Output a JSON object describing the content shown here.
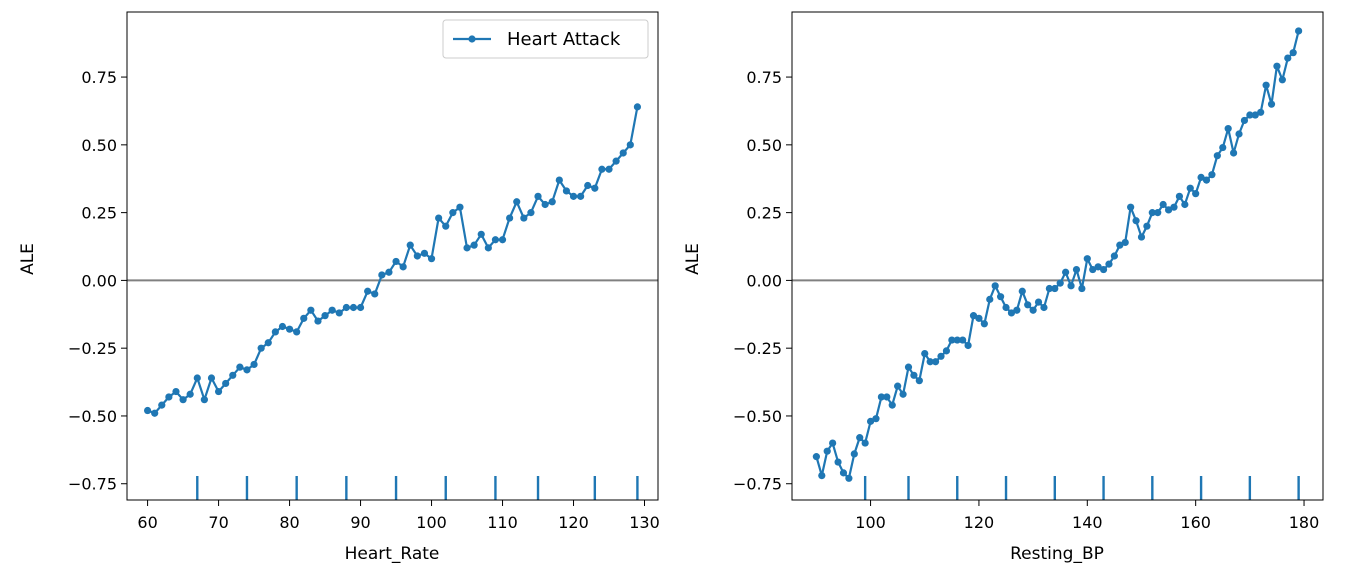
{
  "chart_data": [
    {
      "type": "line",
      "xlabel": "Heart_Rate",
      "ylabel": "ALE",
      "xlim": [
        57.1,
        131.9
      ],
      "ylim": [
        -0.81,
        0.99
      ],
      "xticks": [
        60,
        70,
        80,
        90,
        100,
        110,
        120,
        130
      ],
      "yticks": [
        -0.75,
        -0.5,
        -0.25,
        0.0,
        0.25,
        0.5,
        0.75
      ],
      "ytick_labels": [
        "−0.75",
        "−0.50",
        "−0.25",
        "0.00",
        "0.25",
        "0.50",
        "0.75"
      ],
      "zero_line": 0.0,
      "rug": [
        67,
        74,
        81,
        88,
        95,
        102,
        109,
        115,
        123,
        129
      ],
      "legend": {
        "position": "top-right",
        "entries": [
          "Heart Attack"
        ]
      },
      "series": [
        {
          "name": "Heart Attack",
          "color": "#1f77b4",
          "x": [
            60,
            61,
            62,
            63,
            64,
            65,
            66,
            67,
            68,
            69,
            70,
            71,
            72,
            73,
            74,
            75,
            76,
            77,
            78,
            79,
            80,
            81,
            82,
            83,
            84,
            85,
            86,
            87,
            88,
            89,
            90,
            91,
            92,
            93,
            94,
            95,
            96,
            97,
            98,
            99,
            100,
            101,
            102,
            103,
            104,
            105,
            106,
            107,
            108,
            109,
            110,
            111,
            112,
            113,
            114,
            115,
            116,
            117,
            118,
            119,
            120,
            121,
            122,
            123,
            124,
            125,
            126,
            127,
            128,
            129
          ],
          "y": [
            -0.48,
            -0.49,
            -0.46,
            -0.43,
            -0.41,
            -0.44,
            -0.42,
            -0.36,
            -0.44,
            -0.36,
            -0.41,
            -0.38,
            -0.35,
            -0.32,
            -0.33,
            -0.31,
            -0.25,
            -0.23,
            -0.19,
            -0.17,
            -0.18,
            -0.19,
            -0.14,
            -0.11,
            -0.15,
            -0.13,
            -0.11,
            -0.12,
            -0.1,
            -0.1,
            -0.1,
            -0.04,
            -0.05,
            0.02,
            0.03,
            0.07,
            0.05,
            0.13,
            0.09,
            0.1,
            0.08,
            0.23,
            0.2,
            0.25,
            0.27,
            0.12,
            0.13,
            0.17,
            0.12,
            0.15,
            0.15,
            0.23,
            0.29,
            0.23,
            0.25,
            0.31,
            0.28,
            0.29,
            0.37,
            0.33,
            0.31,
            0.31,
            0.35,
            0.34,
            0.41,
            0.41,
            0.44,
            0.47,
            0.5,
            0.64
          ]
        }
      ]
    },
    {
      "type": "line",
      "xlabel": "Resting_BP",
      "ylabel": "ALE",
      "xlim": [
        85.5,
        183.5
      ],
      "ylim": [
        -0.81,
        0.99
      ],
      "xticks": [
        100,
        120,
        140,
        160,
        180
      ],
      "yticks": [
        -0.75,
        -0.5,
        -0.25,
        0.0,
        0.25,
        0.5,
        0.75
      ],
      "ytick_labels": [
        "−0.75",
        "−0.50",
        "−0.25",
        "0.00",
        "0.25",
        "0.50",
        "0.75"
      ],
      "zero_line": 0.0,
      "rug": [
        99,
        107,
        116,
        125,
        134,
        143,
        152,
        161,
        170,
        179
      ],
      "series": [
        {
          "color": "#1f77b4",
          "x": [
            90,
            91,
            92,
            93,
            94,
            95,
            96,
            97,
            98,
            99,
            100,
            101,
            102,
            103,
            104,
            105,
            106,
            107,
            108,
            109,
            110,
            111,
            112,
            113,
            114,
            115,
            116,
            117,
            118,
            119,
            120,
            121,
            122,
            123,
            124,
            125,
            126,
            127,
            128,
            129,
            130,
            131,
            132,
            133,
            134,
            135,
            136,
            137,
            138,
            139,
            140,
            141,
            142,
            143,
            144,
            145,
            146,
            147,
            148,
            149,
            150,
            151,
            152,
            153,
            154,
            155,
            156,
            157,
            158,
            159,
            160,
            161,
            162,
            163,
            164,
            165,
            166,
            167,
            168,
            169,
            170,
            171,
            172,
            173,
            174,
            175,
            176,
            177,
            178,
            179
          ],
          "y": [
            -0.65,
            -0.72,
            -0.63,
            -0.6,
            -0.67,
            -0.71,
            -0.73,
            -0.64,
            -0.58,
            -0.6,
            -0.52,
            -0.51,
            -0.43,
            -0.43,
            -0.46,
            -0.39,
            -0.42,
            -0.32,
            -0.35,
            -0.37,
            -0.27,
            -0.3,
            -0.3,
            -0.28,
            -0.26,
            -0.22,
            -0.22,
            -0.22,
            -0.24,
            -0.13,
            -0.14,
            -0.16,
            -0.07,
            -0.02,
            -0.06,
            -0.1,
            -0.12,
            -0.11,
            -0.04,
            -0.09,
            -0.11,
            -0.08,
            -0.1,
            -0.03,
            -0.03,
            -0.01,
            0.03,
            -0.02,
            0.04,
            -0.03,
            0.08,
            0.04,
            0.05,
            0.04,
            0.06,
            0.09,
            0.13,
            0.14,
            0.27,
            0.22,
            0.16,
            0.2,
            0.25,
            0.25,
            0.28,
            0.26,
            0.27,
            0.31,
            0.28,
            0.34,
            0.32,
            0.38,
            0.37,
            0.39,
            0.46,
            0.49,
            0.56,
            0.47,
            0.54,
            0.59,
            0.61,
            0.61,
            0.62,
            0.72,
            0.65,
            0.79,
            0.74,
            0.82,
            0.84,
            0.92
          ]
        }
      ]
    }
  ]
}
